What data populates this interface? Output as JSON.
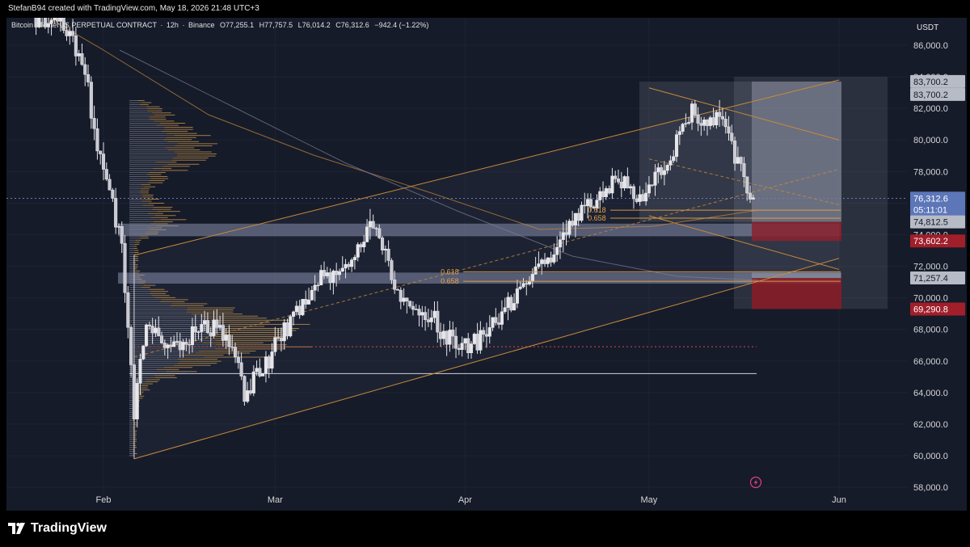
{
  "header": {
    "credit": "StefanB94 created with TradingView.com, May 18, 2026 21:48 UTC+3"
  },
  "symbol": {
    "name": "Bitcoin / TetherUS PERPETUAL CONTRACT",
    "interval": "12h",
    "exchange": "Binance",
    "o_label": "O",
    "o": "77,255.1",
    "h_label": "H",
    "h": "77,757.5",
    "l_label": "L",
    "l": "76,014.2",
    "c_label": "C",
    "c": "76,312.6",
    "change": "−942.4 (−1.22%)"
  },
  "footer": {
    "brand": "TradingView"
  },
  "colors": {
    "background": "#161b2a",
    "candle": "#e6e6ea",
    "trendline": "#c98a3a",
    "volume_profile": "#d9a04a",
    "zone": "#8f98b4",
    "red_box": "#8c1b26",
    "price_label_current": "#5c76b8",
    "price_label_red": "#a01f2b"
  },
  "chart_data": {
    "type": "candlestick",
    "timeframe": "12h",
    "currency": "USDT",
    "ylim": [
      57500,
      88500
    ],
    "x_tick_labels": [
      {
        "date": "2026-02-01",
        "label": "Feb"
      },
      {
        "date": "2026-03-01",
        "label": "Mar"
      },
      {
        "date": "2026-04-01",
        "label": "Apr"
      },
      {
        "date": "2026-05-01",
        "label": "May"
      },
      {
        "date": "2026-06-01",
        "label": "Jun"
      }
    ],
    "y_ticks": [
      {
        "value": 58000,
        "label": "58,000.0"
      },
      {
        "value": 60000,
        "label": "60,000.0"
      },
      {
        "value": 62000,
        "label": "62,000.0"
      },
      {
        "value": 64000,
        "label": "64,000.0"
      },
      {
        "value": 66000,
        "label": "66,000.0"
      },
      {
        "value": 68000,
        "label": "68,000.0"
      },
      {
        "value": 70000,
        "label": "70,000.0"
      },
      {
        "value": 72000,
        "label": "72,000.0"
      },
      {
        "value": 74000,
        "label": "74,000.0"
      },
      {
        "value": 76000,
        "label": "76,000.0"
      },
      {
        "value": 78000,
        "label": "78,000.0"
      },
      {
        "value": 80000,
        "label": "80,000.0"
      },
      {
        "value": 82000,
        "label": "82,000.0"
      },
      {
        "value": 84000,
        "label": "84,000.0"
      },
      {
        "value": 86000,
        "label": "86,000.0"
      }
    ],
    "price_labels": [
      {
        "value": 83700.2,
        "label": "83,700.2",
        "style": "gray"
      },
      {
        "value": 83700.2,
        "label": "83,700.2",
        "style": "gray"
      },
      {
        "value": 76312.6,
        "label": "76,312.6",
        "sub": "05:11:01",
        "style": "current"
      },
      {
        "value": 74812.5,
        "label": "74,812.5",
        "style": "gray"
      },
      {
        "value": 73602.2,
        "label": "73,602.2",
        "style": "red"
      },
      {
        "value": 71257.4,
        "label": "71,257.4",
        "style": "gray"
      },
      {
        "value": 69290.8,
        "label": "69,290.8",
        "style": "red"
      }
    ],
    "fib_labels": [
      {
        "date": "2026-04-21",
        "value": 75550,
        "label": "0.618"
      },
      {
        "date": "2026-04-21",
        "value": 75050,
        "label": "0.658"
      },
      {
        "date": "2026-03-28",
        "value": 71650,
        "label": "0.618"
      },
      {
        "date": "2026-03-28",
        "value": 71050,
        "label": "0.658"
      }
    ],
    "candles_seed": {
      "start": "2026-01-21",
      "anchors": [
        [
          "2026-01-21",
          87800
        ],
        [
          "2026-01-25",
          87200
        ],
        [
          "2026-01-27",
          86500
        ],
        [
          "2026-01-29",
          84200
        ],
        [
          "2026-01-31",
          79500
        ],
        [
          "2026-02-02",
          77000
        ],
        [
          "2026-02-04",
          73000
        ],
        [
          "2026-02-06",
          62500
        ],
        [
          "2026-02-08",
          68500
        ],
        [
          "2026-02-12",
          66800
        ],
        [
          "2026-02-17",
          68200
        ],
        [
          "2026-02-21",
          67800
        ],
        [
          "2026-02-24",
          64000
        ],
        [
          "2026-02-27",
          65500
        ],
        [
          "2026-03-03",
          68200
        ],
        [
          "2026-03-08",
          71000
        ],
        [
          "2026-03-14",
          72500
        ],
        [
          "2026-03-17",
          74800
        ],
        [
          "2026-03-21",
          70500
        ],
        [
          "2026-03-26",
          69000
        ],
        [
          "2026-03-31",
          66600
        ],
        [
          "2026-04-04",
          67500
        ],
        [
          "2026-04-07",
          68800
        ],
        [
          "2026-04-11",
          71500
        ],
        [
          "2026-04-15",
          72500
        ],
        [
          "2026-04-18",
          74800
        ],
        [
          "2026-04-22",
          76000
        ],
        [
          "2026-04-26",
          77500
        ],
        [
          "2026-04-30",
          76000
        ],
        [
          "2026-05-03",
          78000
        ],
        [
          "2026-05-06",
          80200
        ],
        [
          "2026-05-08",
          82000
        ],
        [
          "2026-05-11",
          80800
        ],
        [
          "2026-05-13",
          81800
        ],
        [
          "2026-05-15",
          79000
        ],
        [
          "2026-05-18",
          76312.6
        ]
      ]
    },
    "trend_channel": {
      "upper": [
        {
          "date": "2026-02-06",
          "value": 72700
        },
        {
          "date": "2026-06-01",
          "value": 83800
        }
      ],
      "lower": [
        {
          "date": "2026-02-06",
          "value": 59800
        },
        {
          "date": "2026-06-01",
          "value": 72500
        }
      ]
    },
    "wedge": {
      "upper": [
        {
          "date": "2026-05-01",
          "value": 83300
        },
        {
          "date": "2026-06-01",
          "value": 80000
        }
      ],
      "lower": [
        {
          "date": "2026-05-01",
          "value": 75200
        },
        {
          "date": "2026-06-01",
          "value": 71800
        }
      ]
    },
    "horizontal_zones": [
      {
        "from": 73900,
        "to": 74700
      },
      {
        "from": 70900,
        "to": 71600
      }
    ],
    "horizontal_lines": [
      {
        "value": 65200,
        "style": "solid",
        "color": "#cfd3dd"
      },
      {
        "value": 66900,
        "style": "dotted",
        "color": "#d04a4a"
      },
      {
        "value": 76300,
        "style": "dotted",
        "color": "#6c7ab0"
      }
    ],
    "long_short_boxes": [
      {
        "from_date": "2026-05-19",
        "to_date": "2026-06-01",
        "top": 83700.2,
        "bottom": 74812.5,
        "loss": 73602.2
      },
      {
        "from_date": "2026-05-19",
        "to_date": "2026-06-01",
        "top": 71600,
        "bottom": 71257.4,
        "loss": 69290.8
      }
    ]
  }
}
